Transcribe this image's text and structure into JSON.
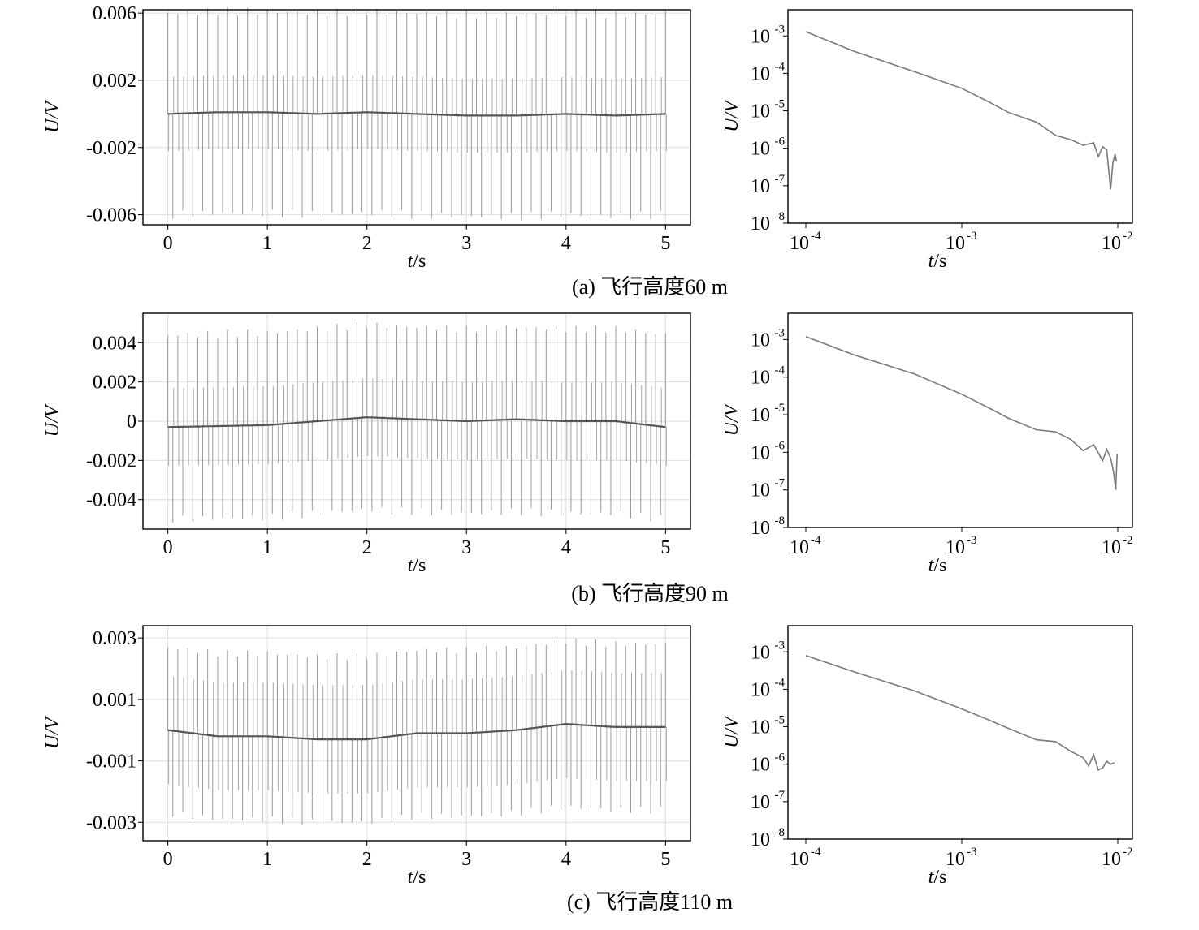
{
  "figure": {
    "rows": [
      {
        "caption": "(a) 飞行高度60 m"
      },
      {
        "caption": "(b) 飞行高度90 m"
      },
      {
        "caption": "(c) 飞行高度110 m"
      }
    ]
  },
  "chart_data": [
    {
      "type": "line",
      "panel": "a-time",
      "xlabel_italic": "t",
      "xlabel_unit": "/s",
      "ylabel": "U/V",
      "xlim": [
        -0.25,
        5.25
      ],
      "ylim": [
        -0.0066,
        0.0062
      ],
      "xticks": [
        0,
        1,
        2,
        3,
        4,
        5
      ],
      "xtick_labels": [
        "0",
        "1",
        "2",
        "3",
        "4",
        "5"
      ],
      "yticks": [
        0.006,
        0.002,
        -0.002,
        -0.006
      ],
      "ytick_labels": [
        "0.006",
        "0.002",
        "-0.002",
        "-0.006"
      ],
      "grid": true,
      "pulse_count": 100,
      "outer_amplitude": 0.006,
      "inner_amplitude": 0.001,
      "baseline": {
        "x": [
          0,
          0.5,
          1,
          1.5,
          2,
          2.5,
          3,
          3.5,
          4,
          4.5,
          5
        ],
        "y": [
          0,
          0.0001,
          0.0001,
          0,
          0.0001,
          0,
          -0.0001,
          -0.0001,
          0,
          -0.0001,
          0
        ]
      }
    },
    {
      "type": "line",
      "panel": "a-decay",
      "xscale": "log",
      "yscale": "log",
      "xlabel_italic": "t",
      "xlabel_unit": "/s",
      "ylabel": "U/V",
      "xlim": [
        0.0001,
        0.01
      ],
      "ylim": [
        1e-08,
        0.005
      ],
      "xtick_mantissa": [
        "10",
        "10",
        "10"
      ],
      "xtick_exponents": [
        "-4",
        "-3",
        "-2"
      ],
      "ytick_mantissa": [
        "10",
        "10",
        "10",
        "10",
        "10",
        "10"
      ],
      "ytick_exponents": [
        "-3",
        "-4",
        "-5",
        "-6",
        "-7",
        "-8"
      ],
      "series": [
        {
          "x": [
            0.0001,
            0.0002,
            0.0005,
            0.001,
            0.0015,
            0.002,
            0.003,
            0.004,
            0.005,
            0.006,
            0.007,
            0.0075,
            0.008,
            0.0085,
            0.009,
            0.0093,
            0.0096,
            0.0098
          ],
          "y": [
            0.0013,
            0.0004,
            0.00011,
            4e-05,
            1.7e-05,
            9e-06,
            5e-06,
            2.2e-06,
            1.7e-06,
            1.2e-06,
            1.4e-06,
            6e-07,
            1.1e-06,
            9e-07,
            8e-08,
            4e-07,
            7e-07,
            4.5e-07
          ]
        }
      ]
    },
    {
      "type": "line",
      "panel": "b-time",
      "xlabel_italic": "t",
      "xlabel_unit": "/s",
      "ylabel": "U/V",
      "xlim": [
        -0.25,
        5.25
      ],
      "ylim": [
        -0.0055,
        0.0055
      ],
      "xticks": [
        0,
        1,
        2,
        3,
        4,
        5
      ],
      "xtick_labels": [
        "0",
        "1",
        "2",
        "3",
        "4",
        "5"
      ],
      "yticks": [
        0.004,
        0.002,
        0,
        -0.002,
        -0.004
      ],
      "ytick_labels": [
        "0.004",
        "0.002",
        "0",
        "-0.002",
        "-0.004"
      ],
      "grid": true,
      "pulse_count": 100,
      "outer_amplitude": 0.0047,
      "inner_amplitude": 0.0009,
      "baseline": {
        "x": [
          0,
          0.5,
          1,
          1.5,
          2,
          2.5,
          3,
          3.5,
          4,
          4.5,
          5
        ],
        "y": [
          -0.0003,
          -0.00025,
          -0.0002,
          0,
          0.0002,
          0.0001,
          0,
          0.0001,
          0,
          0,
          -0.0003
        ]
      }
    },
    {
      "type": "line",
      "panel": "b-decay",
      "xscale": "log",
      "yscale": "log",
      "xlabel_italic": "t",
      "xlabel_unit": "/s",
      "ylabel": "U/V",
      "xlim": [
        0.0001,
        0.01
      ],
      "ylim": [
        1e-08,
        0.005
      ],
      "xtick_mantissa": [
        "10",
        "10",
        "10"
      ],
      "xtick_exponents": [
        "-4",
        "-3",
        "-2"
      ],
      "ytick_mantissa": [
        "10",
        "10",
        "10",
        "10",
        "10",
        "10"
      ],
      "ytick_exponents": [
        "-3",
        "-4",
        "-5",
        "-6",
        "-7",
        "-8"
      ],
      "series": [
        {
          "x": [
            0.0001,
            0.0002,
            0.0005,
            0.001,
            0.0015,
            0.002,
            0.003,
            0.004,
            0.005,
            0.006,
            0.007,
            0.008,
            0.0085,
            0.009,
            0.0094,
            0.0097,
            0.0099
          ],
          "y": [
            0.0012,
            0.0004,
            0.00012,
            3.5e-05,
            1.5e-05,
            8e-06,
            4e-06,
            3.5e-06,
            2.2e-06,
            1.1e-06,
            1.6e-06,
            6e-07,
            1.2e-06,
            7e-07,
            3e-07,
            1e-07,
            9e-07
          ]
        }
      ]
    },
    {
      "type": "line",
      "panel": "c-time",
      "xlabel_italic": "t",
      "xlabel_unit": "/s",
      "ylabel": "U/V",
      "xlim": [
        -0.25,
        5.25
      ],
      "ylim": [
        -0.0036,
        0.0034
      ],
      "xticks": [
        0,
        1,
        2,
        3,
        4,
        5
      ],
      "xtick_labels": [
        "0",
        "1",
        "2",
        "3",
        "4",
        "5"
      ],
      "yticks": [
        0.003,
        0.001,
        -0.001,
        -0.003
      ],
      "ytick_labels": [
        "0.003",
        "0.001",
        "-0.001",
        "-0.003"
      ],
      "grid": true,
      "pulse_count": 100,
      "outer_amplitude": 0.0027,
      "inner_amplitude": 0.0008,
      "baseline": {
        "x": [
          0,
          0.5,
          1,
          1.5,
          2,
          2.5,
          3,
          3.5,
          4,
          4.5,
          5
        ],
        "y": [
          0,
          -0.0002,
          -0.0002,
          -0.0003,
          -0.0003,
          -0.0001,
          -0.0001,
          0,
          0.0002,
          0.0001,
          0.0001
        ]
      }
    },
    {
      "type": "line",
      "panel": "c-decay",
      "xscale": "log",
      "yscale": "log",
      "xlabel_italic": "t",
      "xlabel_unit": "/s",
      "ylabel": "U/V",
      "xlim": [
        0.0001,
        0.01
      ],
      "ylim": [
        1e-08,
        0.005
      ],
      "xtick_mantissa": [
        "10",
        "10",
        "10"
      ],
      "xtick_exponents": [
        "-4",
        "-3",
        "-2"
      ],
      "ytick_mantissa": [
        "10",
        "10",
        "10",
        "10",
        "10",
        "10"
      ],
      "ytick_exponents": [
        "-3",
        "-4",
        "-5",
        "-6",
        "-7",
        "-8"
      ],
      "series": [
        {
          "x": [
            0.0001,
            0.0002,
            0.0005,
            0.001,
            0.0015,
            0.002,
            0.003,
            0.004,
            0.005,
            0.006,
            0.0065,
            0.007,
            0.0075,
            0.008,
            0.0085,
            0.009,
            0.0095
          ],
          "y": [
            0.0008,
            0.0003,
            9e-05,
            3e-05,
            1.5e-05,
            9e-06,
            4.5e-06,
            4e-06,
            2.2e-06,
            1.5e-06,
            9e-07,
            1.8e-06,
            7e-07,
            8e-07,
            1.2e-06,
            1e-06,
            1.1e-06
          ]
        }
      ]
    }
  ]
}
